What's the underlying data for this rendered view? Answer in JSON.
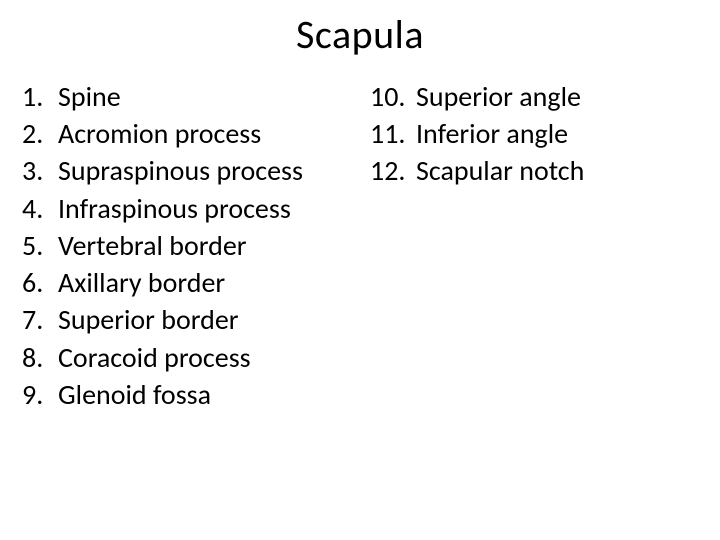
{
  "title": "Scapula",
  "left_items": [
    {
      "n": "1.",
      "label": "Spine"
    },
    {
      "n": "2.",
      "label": "Acromion process"
    },
    {
      "n": "3.",
      "label": "Supraspinous process"
    },
    {
      "n": "4.",
      "label": "Infraspinous process"
    },
    {
      "n": "5.",
      "label": "Vertebral border"
    },
    {
      "n": "6.",
      "label": "Axillary border"
    },
    {
      "n": "7.",
      "label": "Superior border"
    },
    {
      "n": "8.",
      "label": "Coracoid process"
    },
    {
      "n": "9.",
      "label": "Glenoid fossa"
    }
  ],
  "right_items": [
    {
      "n": "10.",
      "label": "Superior angle"
    },
    {
      "n": "11.",
      "label": "Inferior angle"
    },
    {
      "n": "12.",
      "label": "Scapular notch"
    }
  ],
  "colors": {
    "background": "#ffffff",
    "text": "#000000"
  },
  "typography": {
    "title_fontsize": 40,
    "body_fontsize": 28,
    "font_family": "Calibri"
  }
}
